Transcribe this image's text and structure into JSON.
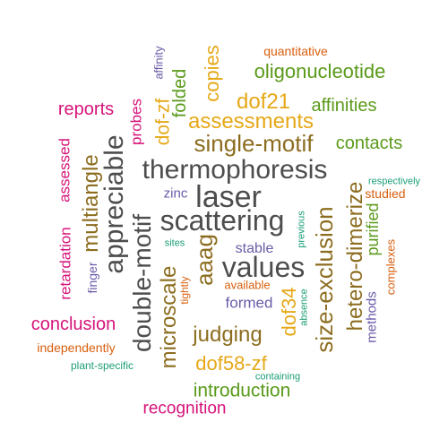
{
  "colors": {
    "grey": "#4d4d4d",
    "brown": "#8c6d1f",
    "gold": "#e6a817",
    "green": "#5a9a1a",
    "magenta": "#d6137a",
    "purple": "#6a5aa8",
    "orange": "#d95f0e",
    "teal": "#1b9e77"
  },
  "words": [
    {
      "text": "thermophoresis",
      "color": "grey"
    },
    {
      "text": "scattering",
      "color": "grey"
    },
    {
      "text": "laser",
      "color": "grey"
    },
    {
      "text": "values",
      "color": "grey"
    },
    {
      "text": "appreciable",
      "color": "grey"
    },
    {
      "text": "double-motif",
      "color": "grey"
    },
    {
      "text": "single-motif",
      "color": "brown"
    },
    {
      "text": "aaag",
      "color": "brown"
    },
    {
      "text": "size-exclusion",
      "color": "brown"
    },
    {
      "text": "microscale",
      "color": "brown"
    },
    {
      "text": "hetero-dimerize",
      "color": "brown"
    },
    {
      "text": "multiangle",
      "color": "brown"
    },
    {
      "text": "judging",
      "color": "brown"
    },
    {
      "text": "dof21",
      "color": "gold"
    },
    {
      "text": "assessments",
      "color": "gold"
    },
    {
      "text": "dof58-zf",
      "color": "gold"
    },
    {
      "text": "dof34",
      "color": "gold"
    },
    {
      "text": "copies",
      "color": "gold"
    },
    {
      "text": "dof-zf",
      "color": "gold"
    },
    {
      "text": "oligonucleotide",
      "color": "green"
    },
    {
      "text": "affinities",
      "color": "green"
    },
    {
      "text": "contacts",
      "color": "green"
    },
    {
      "text": "introduction",
      "color": "green"
    },
    {
      "text": "folded",
      "color": "green"
    },
    {
      "text": "purified",
      "color": "green"
    },
    {
      "text": "reports",
      "color": "magenta"
    },
    {
      "text": "conclusion",
      "color": "magenta"
    },
    {
      "text": "recognition",
      "color": "magenta"
    },
    {
      "text": "probes",
      "color": "magenta"
    },
    {
      "text": "assessed",
      "color": "magenta"
    },
    {
      "text": "retardation",
      "color": "magenta"
    },
    {
      "text": "formed",
      "color": "purple"
    },
    {
      "text": "stable",
      "color": "purple"
    },
    {
      "text": "zinc",
      "color": "purple"
    },
    {
      "text": "finger",
      "color": "purple"
    },
    {
      "text": "methods",
      "color": "purple"
    },
    {
      "text": "affinity",
      "color": "purple"
    },
    {
      "text": "quantitative",
      "color": "orange"
    },
    {
      "text": "independently",
      "color": "orange"
    },
    {
      "text": "available",
      "color": "orange"
    },
    {
      "text": "studied",
      "color": "orange"
    },
    {
      "text": "tightly",
      "color": "orange"
    },
    {
      "text": "complexes",
      "color": "orange"
    },
    {
      "text": "plant-specific",
      "color": "teal"
    },
    {
      "text": "sites",
      "color": "teal"
    },
    {
      "text": "containing",
      "color": "teal"
    },
    {
      "text": "respectively",
      "color": "teal"
    },
    {
      "text": "previous",
      "color": "teal"
    },
    {
      "text": "absence",
      "color": "teal"
    }
  ]
}
